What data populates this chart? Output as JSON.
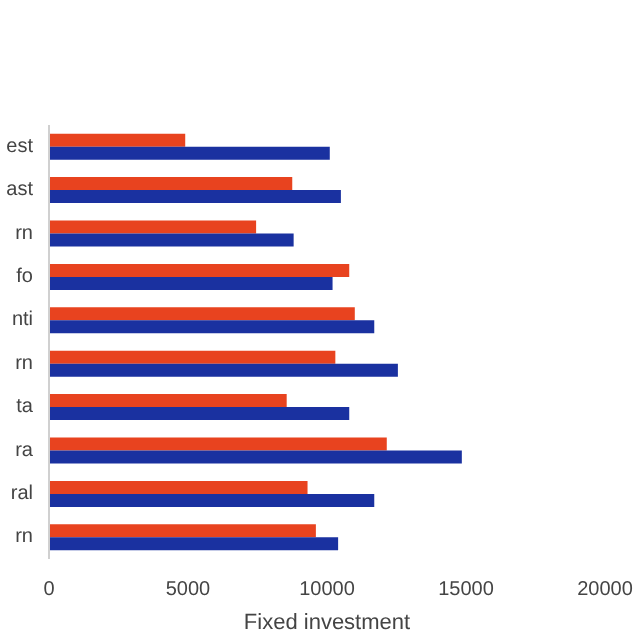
{
  "chart_data": {
    "type": "bar",
    "orientation": "horizontal",
    "xlabel": "Fixed investment",
    "categories": [
      "est",
      "ast",
      "rn",
      "fo",
      "nti",
      "rn",
      "ta",
      "ra",
      "ral",
      "rn"
    ],
    "series": [
      {
        "color": "#e8431f",
        "values": [
          4900,
          8750,
          7450,
          10800,
          11000,
          10300,
          8550,
          12150,
          9300,
          9600
        ]
      },
      {
        "color": "#1a31a0",
        "values": [
          10100,
          10500,
          8800,
          10200,
          11700,
          12550,
          10800,
          14850,
          11700,
          10400
        ]
      }
    ],
    "xlim": [
      0,
      20000
    ],
    "xticks": [
      0,
      5000,
      10000,
      15000,
      20000
    ],
    "grid": false
  }
}
